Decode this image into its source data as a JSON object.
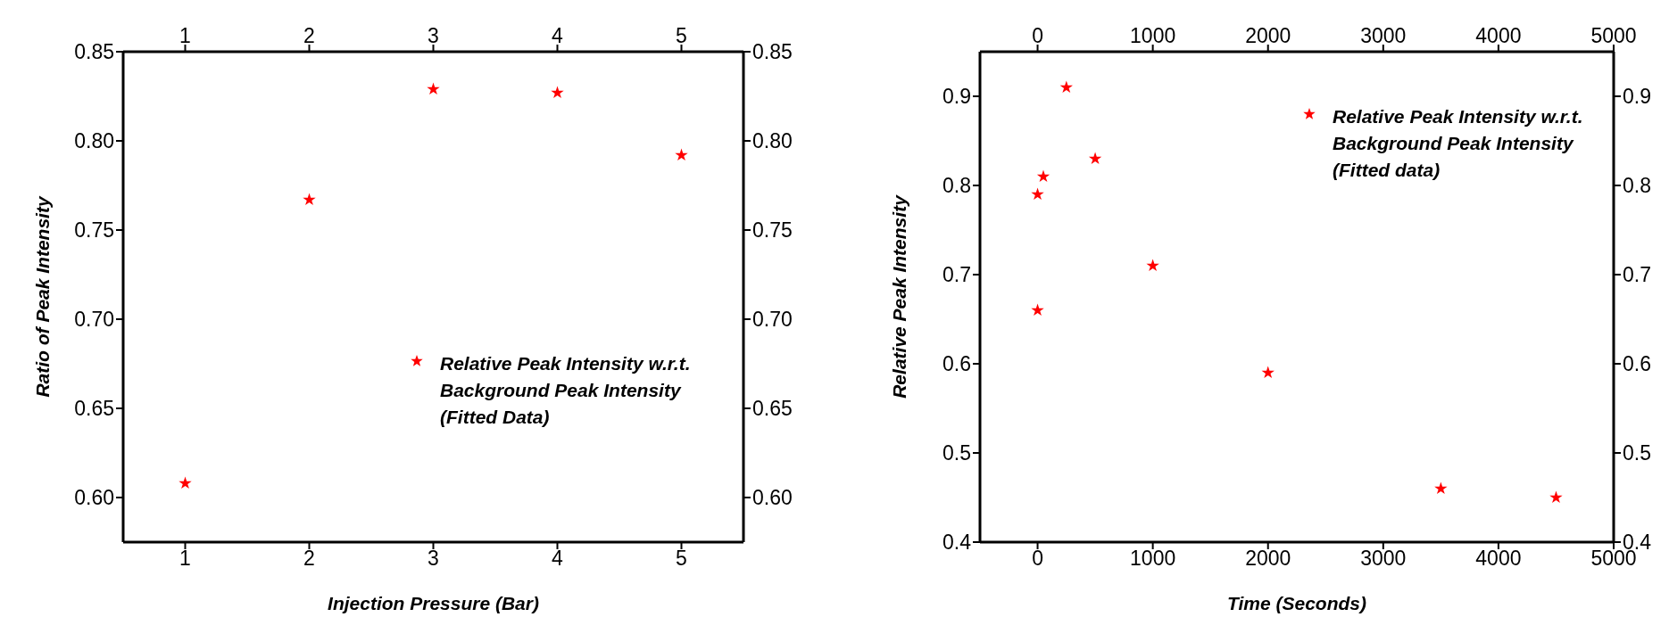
{
  "chart_data": [
    {
      "type": "scatter",
      "xlabel": "Injection Pressure (Bar)",
      "ylabel": "Ratio of Peak Intensity",
      "x": [
        1,
        2,
        3,
        4,
        5
      ],
      "series": [
        {
          "name": "Relative Peak Intensity w.r.t. Background Peak Intensity (Fitted Data)",
          "color": "#ff0000",
          "values": [
            0.608,
            0.767,
            0.829,
            0.827,
            0.792
          ]
        }
      ],
      "xlim": [
        0.5,
        5.5
      ],
      "xticks": [
        1,
        2,
        3,
        4,
        5
      ],
      "x2lim": [
        0.5,
        5.5
      ],
      "x2ticks": [
        1,
        2,
        3,
        4,
        5
      ],
      "ylim": [
        0.575,
        0.85
      ],
      "yticks": [
        {
          "value": 0.6,
          "label": "0.60"
        },
        {
          "value": 0.65,
          "label": "0.65"
        },
        {
          "value": 0.7,
          "label": "0.70"
        },
        {
          "value": 0.75,
          "label": "0.75"
        },
        {
          "value": 0.8,
          "label": "0.80"
        },
        {
          "value": 0.85,
          "label": "0.85"
        }
      ],
      "y2lim": [
        0.575,
        0.85
      ],
      "y2ticks": [
        {
          "value": 0.6,
          "label": "0.60"
        },
        {
          "value": 0.65,
          "label": "0.65"
        },
        {
          "value": 0.7,
          "label": "0.70"
        },
        {
          "value": 0.75,
          "label": "0.75"
        },
        {
          "value": 0.8,
          "label": "0.80"
        },
        {
          "value": 0.85,
          "label": "0.85"
        }
      ],
      "marker": "star",
      "legend": "right"
    },
    {
      "type": "scatter",
      "xlabel": "Time (Seconds)",
      "ylabel": "Relative Peak Intensity",
      "x": [
        0,
        50,
        0,
        250,
        500,
        1000,
        2000,
        3500,
        4500
      ],
      "series": [
        {
          "name": "Relative Peak Intensity w.r.t. Background Peak Intensity (Fitted data)",
          "color": "#ff0000",
          "values": [
            0.79,
            0.81,
            0.66,
            0.91,
            0.83,
            0.71,
            0.59,
            0.46,
            0.45
          ]
        }
      ],
      "xlim": [
        -500,
        5000
      ],
      "xticks": [
        0,
        1000,
        2000,
        3000,
        4000,
        5000
      ],
      "x2lim": [
        -500,
        5000
      ],
      "x2ticks": [
        0,
        1000,
        2000,
        3000,
        4000,
        5000
      ],
      "ylim": [
        0.4,
        0.95
      ],
      "yticks": [
        0.4,
        0.5,
        0.6,
        0.7,
        0.8,
        0.9
      ],
      "y2lim": [
        0.4,
        0.95
      ],
      "y2ticks": [
        0.4,
        0.5,
        0.6,
        0.7,
        0.8,
        0.9
      ],
      "marker": "star",
      "legend": "top right"
    }
  ]
}
